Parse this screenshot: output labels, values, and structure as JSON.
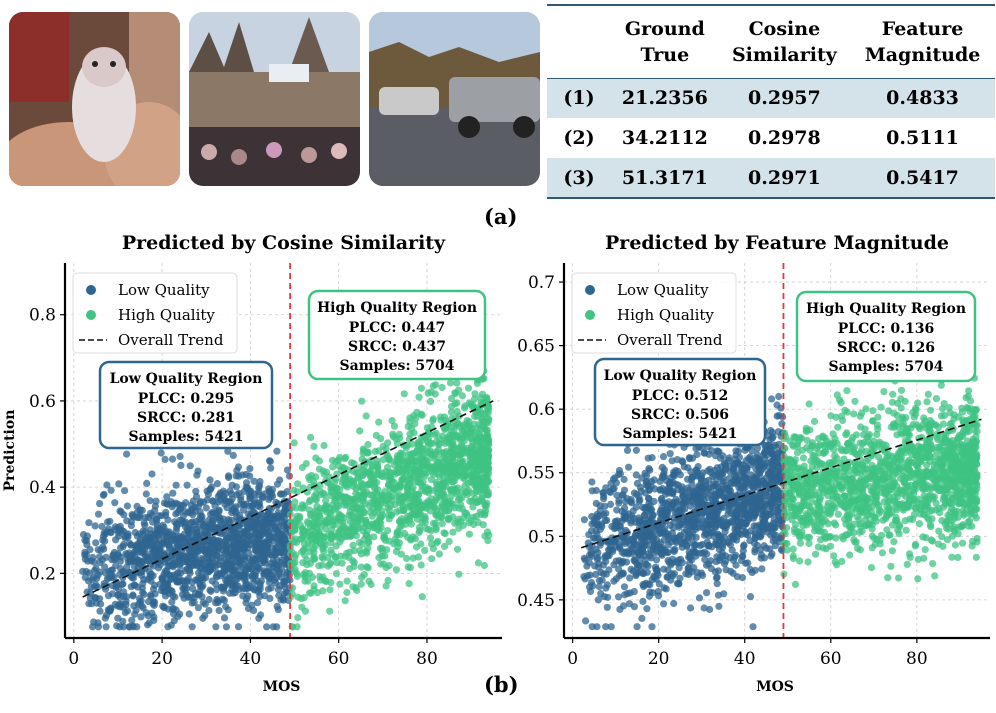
{
  "figure": {
    "label_a": "(a)",
    "label_b": "(b)"
  },
  "table": {
    "headers": [
      {
        "line1": "",
        "line2": ""
      },
      {
        "line1": "Ground",
        "line2": "True"
      },
      {
        "line1": "Cosine",
        "line2": "Similarity"
      },
      {
        "line1": "Feature",
        "line2": "Magnitude"
      }
    ],
    "rows": [
      {
        "id": "(1)",
        "ground_true": "21.2356",
        "cosine": "0.2957",
        "magnitude": "0.4833"
      },
      {
        "id": "(2)",
        "ground_true": "34.2112",
        "cosine": "0.2978",
        "magnitude": "0.5111"
      },
      {
        "id": "(3)",
        "ground_true": "51.3171",
        "cosine": "0.2971",
        "magnitude": "0.5417"
      }
    ]
  },
  "colors": {
    "low": "#2f6690",
    "high": "#3fc383",
    "threshold": "#e0393e",
    "box_low_edge": "#2f6690",
    "box_high_edge": "#3fc383",
    "table_shade": "#d4e2ea"
  },
  "chart_data": [
    {
      "type": "scatter",
      "title": "Predicted by Cosine Similarity",
      "xlabel": "MOS",
      "ylabel": "Prediction",
      "xlim": [
        -2,
        97
      ],
      "ylim": [
        0.05,
        0.92
      ],
      "xticks": [
        0,
        20,
        40,
        60,
        80
      ],
      "yticks": [
        0.2,
        0.4,
        0.6,
        0.8
      ],
      "threshold": 49,
      "grid": true,
      "legend_position": "top-left",
      "legend": [
        "Low Quality",
        "High Quality",
        "Overall Trend"
      ],
      "trend": {
        "x": [
          2,
          95
        ],
        "y": [
          0.145,
          0.6
        ]
      },
      "low": {
        "x_range": [
          2,
          49
        ],
        "center": 0.25,
        "slope": 0.0015,
        "spread": 0.075,
        "n": 5421,
        "box": {
          "title": "Low Quality Region",
          "lines": [
            "PLCC: 0.295",
            "SRCC: 0.281",
            "Samples: 5421"
          ]
        }
      },
      "high": {
        "x_range": [
          49,
          94
        ],
        "center": 0.38,
        "slope": 0.0045,
        "spread": 0.085,
        "n": 5704,
        "box": {
          "title": "High Quality Region",
          "lines": [
            "PLCC: 0.447",
            "SRCC: 0.437",
            "Samples: 5704"
          ]
        }
      }
    },
    {
      "type": "scatter",
      "title": "Predicted by Feature Magnitude",
      "xlabel": "MOS",
      "ylabel": "",
      "xlim": [
        -2,
        97
      ],
      "ylim": [
        0.42,
        0.715
      ],
      "xticks": [
        0,
        20,
        40,
        60,
        80
      ],
      "yticks": [
        0.45,
        0.5,
        0.55,
        0.6,
        0.65,
        0.7
      ],
      "threshold": 49,
      "grid": true,
      "legend_position": "top-left",
      "legend": [
        "Low Quality",
        "High Quality",
        "Overall Trend"
      ],
      "trend": {
        "x": [
          2,
          95
        ],
        "y": [
          0.491,
          0.592
        ]
      },
      "low": {
        "x_range": [
          2,
          49
        ],
        "center": 0.515,
        "slope": 0.0012,
        "spread": 0.028,
        "n": 5421,
        "box": {
          "title": "Low Quality Region",
          "lines": [
            "PLCC: 0.512",
            "SRCC: 0.506",
            "Samples: 5421"
          ]
        }
      },
      "high": {
        "x_range": [
          49,
          94
        ],
        "center": 0.545,
        "slope": 0.0005,
        "spread": 0.027,
        "n": 5704,
        "box": {
          "title": "High Quality Region",
          "lines": [
            "PLCC: 0.136",
            "SRCC: 0.126",
            "Samples: 5704"
          ]
        }
      }
    }
  ]
}
